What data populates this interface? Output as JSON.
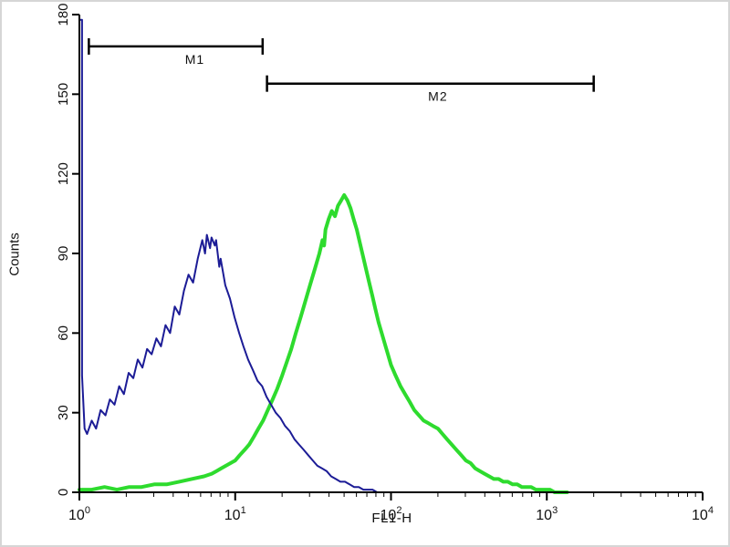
{
  "chart_data": {
    "type": "line",
    "subtype": "flow-cytometry-histogram-overlay",
    "title": "",
    "xlabel": "FL1-H",
    "ylabel": "Counts",
    "x_scale": "log10",
    "x_range": [
      1,
      10000
    ],
    "y_range": [
      0,
      180
    ],
    "y_ticks": [
      0,
      30,
      60,
      90,
      120,
      150,
      180
    ],
    "x_decades": [
      0,
      1,
      2,
      3,
      4
    ],
    "x_tick_labels": [
      "10^0",
      "10^1",
      "10^2",
      "10^3",
      "10^4"
    ],
    "grid": false,
    "legend": "none",
    "axis_color": "#000000",
    "series": [
      {
        "name": "green-curve",
        "color": "#2edb2e",
        "width": 4,
        "points": [
          [
            1.0,
            1
          ],
          [
            1.2,
            1
          ],
          [
            1.45,
            2
          ],
          [
            1.74,
            1
          ],
          [
            2.09,
            2
          ],
          [
            2.51,
            2
          ],
          [
            3.02,
            3
          ],
          [
            3.63,
            3
          ],
          [
            4.37,
            4
          ],
          [
            5.25,
            5
          ],
          [
            6.31,
            6
          ],
          [
            7.08,
            7
          ],
          [
            7.59,
            8
          ],
          [
            8.13,
            9
          ],
          [
            8.71,
            10
          ],
          [
            9.33,
            11
          ],
          [
            10.0,
            12
          ],
          [
            10.7,
            14
          ],
          [
            11.5,
            16
          ],
          [
            12.3,
            18
          ],
          [
            13.2,
            21
          ],
          [
            14.1,
            24
          ],
          [
            15.1,
            27
          ],
          [
            16.2,
            31
          ],
          [
            17.4,
            35
          ],
          [
            18.6,
            39
          ],
          [
            20.0,
            44
          ],
          [
            21.4,
            49
          ],
          [
            22.9,
            54
          ],
          [
            24.5,
            60
          ],
          [
            26.3,
            66
          ],
          [
            28.2,
            72
          ],
          [
            30.2,
            78
          ],
          [
            32.4,
            84
          ],
          [
            34.7,
            90
          ],
          [
            36.3,
            95
          ],
          [
            37.2,
            93
          ],
          [
            38.0,
            99
          ],
          [
            39.8,
            103
          ],
          [
            41.7,
            106
          ],
          [
            43.7,
            104
          ],
          [
            45.7,
            108
          ],
          [
            47.9,
            110
          ],
          [
            50.1,
            112
          ],
          [
            52.5,
            110
          ],
          [
            55.0,
            107
          ],
          [
            57.5,
            103
          ],
          [
            60.3,
            99
          ],
          [
            63.1,
            94
          ],
          [
            66.1,
            89
          ],
          [
            69.2,
            84
          ],
          [
            72.4,
            79
          ],
          [
            75.9,
            74
          ],
          [
            79.4,
            69
          ],
          [
            83.2,
            64
          ],
          [
            87.1,
            60
          ],
          [
            91.2,
            56
          ],
          [
            95.5,
            52
          ],
          [
            100,
            48
          ],
          [
            107,
            44
          ],
          [
            115,
            40
          ],
          [
            123,
            37
          ],
          [
            132,
            34
          ],
          [
            141,
            31
          ],
          [
            151,
            29
          ],
          [
            162,
            27
          ],
          [
            174,
            26
          ],
          [
            186,
            25
          ],
          [
            200,
            24
          ],
          [
            214,
            22
          ],
          [
            229,
            20
          ],
          [
            245,
            18
          ],
          [
            263,
            16
          ],
          [
            282,
            14
          ],
          [
            302,
            12
          ],
          [
            324,
            11
          ],
          [
            347,
            9
          ],
          [
            372,
            8
          ],
          [
            398,
            7
          ],
          [
            427,
            6
          ],
          [
            457,
            5
          ],
          [
            490,
            5
          ],
          [
            525,
            4
          ],
          [
            562,
            4
          ],
          [
            603,
            3
          ],
          [
            646,
            3
          ],
          [
            692,
            2
          ],
          [
            741,
            2
          ],
          [
            794,
            2
          ],
          [
            851,
            1
          ],
          [
            912,
            1
          ],
          [
            977,
            1
          ],
          [
            1047,
            1
          ],
          [
            1122,
            0
          ],
          [
            1202,
            0
          ],
          [
            1350,
            0
          ]
        ]
      },
      {
        "name": "blue-curve",
        "color": "#1c1c96",
        "width": 2,
        "points": [
          [
            1.0,
            0
          ],
          [
            1.0,
            178
          ],
          [
            1.04,
            178
          ],
          [
            1.04,
            44
          ],
          [
            1.08,
            24
          ],
          [
            1.12,
            22
          ],
          [
            1.2,
            27
          ],
          [
            1.28,
            24
          ],
          [
            1.37,
            31
          ],
          [
            1.47,
            29
          ],
          [
            1.57,
            35
          ],
          [
            1.68,
            33
          ],
          [
            1.8,
            40
          ],
          [
            1.93,
            37
          ],
          [
            2.07,
            45
          ],
          [
            2.22,
            43
          ],
          [
            2.37,
            50
          ],
          [
            2.54,
            47
          ],
          [
            2.72,
            54
          ],
          [
            2.91,
            52
          ],
          [
            3.12,
            58
          ],
          [
            3.34,
            55
          ],
          [
            3.57,
            63
          ],
          [
            3.82,
            60
          ],
          [
            4.09,
            70
          ],
          [
            4.38,
            67
          ],
          [
            4.69,
            76
          ],
          [
            5.02,
            82
          ],
          [
            5.37,
            79
          ],
          [
            5.75,
            88
          ],
          [
            6.15,
            95
          ],
          [
            6.4,
            90
          ],
          [
            6.58,
            97
          ],
          [
            6.9,
            92
          ],
          [
            7.05,
            96
          ],
          [
            7.4,
            93
          ],
          [
            7.54,
            95
          ],
          [
            7.9,
            85
          ],
          [
            8.07,
            88
          ],
          [
            8.64,
            78
          ],
          [
            9.25,
            73
          ],
          [
            9.9,
            66
          ],
          [
            10.6,
            60
          ],
          [
            11.3,
            55
          ],
          [
            12.1,
            50
          ],
          [
            13.0,
            46
          ],
          [
            13.9,
            42
          ],
          [
            14.9,
            40
          ],
          [
            15.9,
            36
          ],
          [
            17.0,
            33
          ],
          [
            18.2,
            30
          ],
          [
            19.5,
            28
          ],
          [
            20.9,
            25
          ],
          [
            22.4,
            23
          ],
          [
            24.0,
            20
          ],
          [
            25.7,
            18
          ],
          [
            27.5,
            16
          ],
          [
            29.4,
            14
          ],
          [
            31.5,
            12
          ],
          [
            33.7,
            10
          ],
          [
            36.1,
            9
          ],
          [
            38.6,
            8
          ],
          [
            41.3,
            6
          ],
          [
            44.2,
            5
          ],
          [
            47.3,
            4
          ],
          [
            50.7,
            4
          ],
          [
            54.2,
            3
          ],
          [
            58.0,
            2
          ],
          [
            62.1,
            2
          ],
          [
            66.5,
            1
          ],
          [
            71.2,
            1
          ],
          [
            76.2,
            1
          ],
          [
            81.5,
            0
          ],
          [
            87.3,
            0
          ],
          [
            100,
            0
          ]
        ]
      }
    ],
    "markers": [
      {
        "label": "M1",
        "x1": 1.15,
        "x2": 15,
        "y": 168,
        "label_x": 5.5,
        "color": "#000000"
      },
      {
        "label": "M2",
        "x1": 16,
        "x2": 2000,
        "y": 154,
        "label_x": 200,
        "color": "#000000"
      }
    ]
  }
}
